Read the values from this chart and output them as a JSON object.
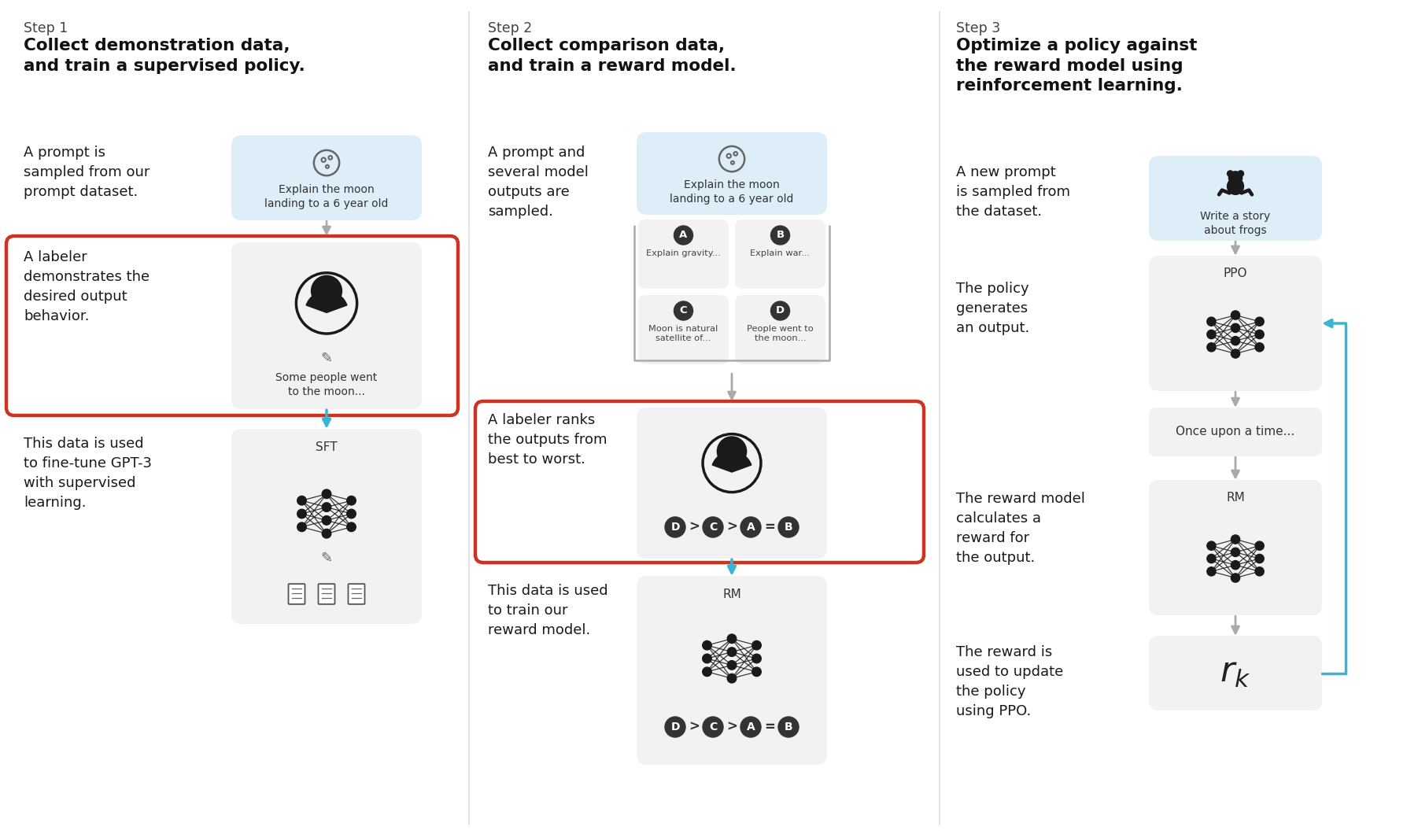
{
  "bg_color": "#ffffff",
  "fig_width": 17.88,
  "fig_height": 10.6,
  "divider_color": "#dddddd",
  "step_label_color": "#444444",
  "title_color": "#111111",
  "desc_color": "#1a1a1a",
  "box_bg_light_blue": "#ddeef8",
  "box_bg_gray": "#f2f2f2",
  "arrow_gray": "#aaaaaa",
  "arrow_blue": "#3ab5d0",
  "red_border": "#cc3322",
  "dark_node": "#1a1a1a",
  "step1": {
    "step_label": "Step 1",
    "title": "Collect demonstration data,\nand train a supervised policy.",
    "desc1": "A prompt is\nsampled from our\nprompt dataset.",
    "desc2": "A labeler\ndemonstrates the\ndesired output\nbehavior.",
    "desc3": "This data is used\nto fine-tune GPT-3\nwith supervised\nlearning.",
    "box1_text": "Explain the moon\nlanding to a 6 year old",
    "box2_text": "Some people went\nto the moon...",
    "box3_label": "SFT"
  },
  "step2": {
    "step_label": "Step 2",
    "title": "Collect comparison data,\nand train a reward model.",
    "desc1": "A prompt and\nseveral model\noutputs are\nsampled.",
    "desc2": "A labeler ranks\nthe outputs from\nbest to worst.",
    "desc3": "This data is used\nto train our\nreward model.",
    "box1_text": "Explain the moon\nlanding to a 6 year old",
    "box_a_text": "Explain gravity...",
    "box_b_text": "Explain war...",
    "box_c_text": "Moon is natural\nsatellite of...",
    "box_d_text": "People went to\nthe moon...",
    "box3_label": "RM"
  },
  "step3": {
    "step_label": "Step 3",
    "title": "Optimize a policy against\nthe reward model using\nreinforcement learning.",
    "desc1": "A new prompt\nis sampled from\nthe dataset.",
    "desc2": "The policy\ngenerates\nan output.",
    "desc3": "The reward model\ncalculates a\nreward for\nthe output.",
    "desc4": "The reward is\nused to update\nthe policy\nusing PPO.",
    "box1_text": "Write a story\nabout frogs",
    "box2_label": "PPO",
    "box3_text": "Once upon a time...",
    "box4_label": "RM"
  }
}
